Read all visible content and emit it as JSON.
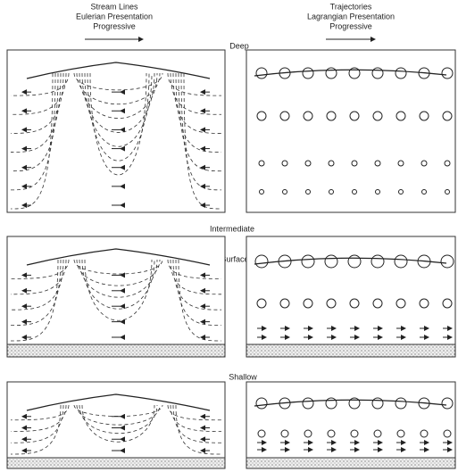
{
  "header": {
    "left": {
      "lines": [
        "Stream Lines",
        "Eulerian Presentation",
        "Progressive"
      ]
    },
    "right": {
      "lines": [
        "Trajectories",
        "Lagrangian Presentation",
        "Progressive"
      ]
    }
  },
  "labels": {
    "deep": "Deep",
    "intermediate": "Intermediate",
    "surface": "Surface",
    "shallow": "Shallow"
  }
}
